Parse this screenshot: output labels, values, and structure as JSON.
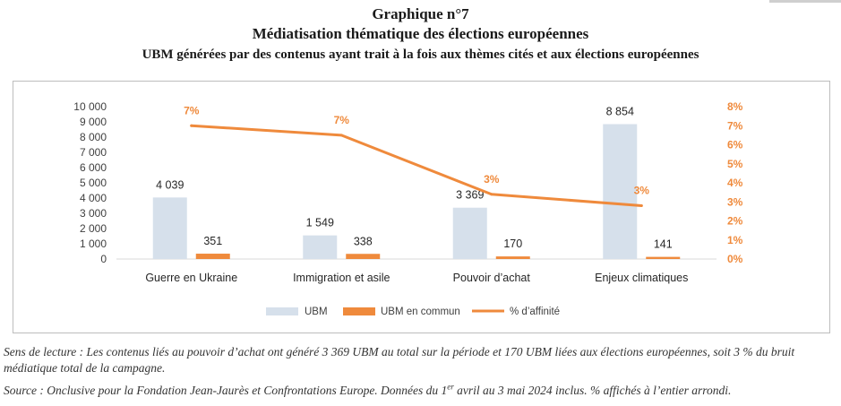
{
  "header": {
    "title_line1": "Graphique n°7",
    "title_line2": "Médiatisation thématique des élections européennes",
    "subtitle": "UBM générées par des contenus ayant trait à la fois aux thèmes cités et aux élections européennes"
  },
  "notes": {
    "reading": "Sens de lecture : Les contenus liés au pouvoir d’achat ont généré 3 369 UBM au total sur la période et 170 UBM liées aux élections européennes, soit 3 % du bruit médiatique total de la campagne.",
    "source_prefix": "Source : Onclusive pour la Fondation Jean-Jaurès et Confrontations Europe. Données du 1",
    "source_sup": "er",
    "source_suffix": " avril au 3 mai 2024 inclus. % affichés à l’entier arrondi."
  },
  "chart_data": {
    "type": "bar",
    "categories": [
      "Guerre en Ukraine",
      "Immigration et asile",
      "Pouvoir d’achat",
      "Enjeux climatiques"
    ],
    "series": [
      {
        "name": "UBM",
        "type": "bar",
        "axis": "left",
        "color": "#d6e0eb",
        "values": [
          4039,
          1549,
          3369,
          8854
        ],
        "labels": [
          "4 039",
          "1 549",
          "3 369",
          "8 854"
        ]
      },
      {
        "name": "UBM en commun",
        "type": "bar",
        "axis": "left",
        "color": "#ef8a3c",
        "values": [
          351,
          338,
          170,
          141
        ],
        "labels": [
          "351",
          "338",
          "170",
          "141"
        ]
      },
      {
        "name": "% d’affinité",
        "type": "line",
        "axis": "right",
        "color": "#ef8a3c",
        "values": [
          7,
          6.5,
          3.4,
          2.8
        ],
        "labels": [
          "7%",
          "7%",
          "3%",
          "3%"
        ]
      }
    ],
    "y_left": {
      "min": 0,
      "max": 10000,
      "ticks": [
        "0",
        "1 000",
        "2 000",
        "3 000",
        "4 000",
        "5 000",
        "6 000",
        "7 000",
        "8 000",
        "9 000",
        "10 000"
      ]
    },
    "y_right": {
      "min": 0,
      "max": 8,
      "ticks": [
        "0%",
        "1%",
        "2%",
        "3%",
        "4%",
        "5%",
        "6%",
        "7%",
        "8%"
      ],
      "color": "#ef8a3c"
    },
    "grid": false,
    "legend_position": "bottom"
  }
}
